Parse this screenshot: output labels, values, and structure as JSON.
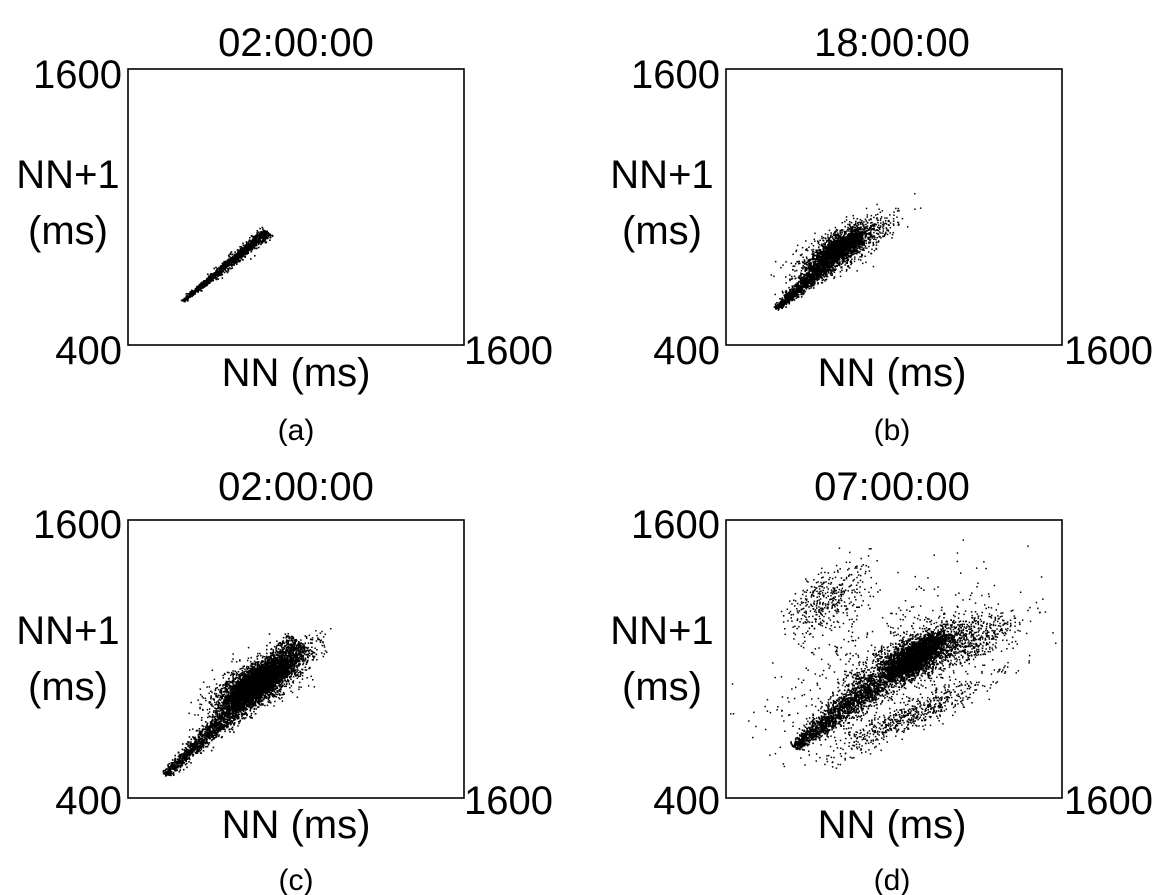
{
  "chart_data": [
    {
      "panel": "(a)",
      "type": "scatter",
      "title": "02:00:00",
      "xlabel": "NN (ms)",
      "ylabel_lines": [
        "NN+1",
        "(ms)"
      ],
      "y_tick_max": "1600",
      "origin_label": "400",
      "x_tick_max": "1600",
      "xlim": [
        400,
        1600
      ],
      "ylim": [
        400,
        1600
      ],
      "point_color": "#000000",
      "clusters": [
        {
          "shape": "line",
          "from": [
            592,
            592
          ],
          "to": [
            896,
            896
          ],
          "width_ms": 10,
          "count": 1400,
          "core_count": 0
        }
      ]
    },
    {
      "panel": "(b)",
      "type": "scatter",
      "title": "18:00:00",
      "xlabel": "NN (ms)",
      "ylabel_lines": [
        "NN+1",
        "(ms)"
      ],
      "y_tick_max": "1600",
      "origin_label": "400",
      "x_tick_max": "1600",
      "xlim": [
        400,
        1600
      ],
      "ylim": [
        400,
        1600
      ],
      "point_color": "#000000",
      "clusters": [
        {
          "shape": "line",
          "from": [
            576,
            560
          ],
          "to": [
            760,
            760
          ],
          "width_ms": 16,
          "count": 1000,
          "core_count": 0
        },
        {
          "shape": "blob",
          "center": [
            800,
            820
          ],
          "spread": [
            75,
            70
          ],
          "count": 1300,
          "core_count": 600
        },
        {
          "shape": "blob",
          "center": [
            880,
            870
          ],
          "spread": [
            65,
            55
          ],
          "count": 250,
          "core_count": 0
        }
      ]
    },
    {
      "panel": "(c)",
      "type": "scatter",
      "title": "02:00:00",
      "xlabel": "NN (ms)",
      "ylabel_lines": [
        "NN+1",
        "(ms)"
      ],
      "y_tick_max": "1600",
      "origin_label": "400",
      "x_tick_max": "1600",
      "xlim": [
        400,
        1600
      ],
      "ylim": [
        400,
        1600
      ],
      "point_color": "#000000",
      "clusters": [
        {
          "shape": "line",
          "from": [
            530,
            500
          ],
          "to": [
            1020,
            1070
          ],
          "width_ms": 28,
          "count": 2600,
          "core_count": 0
        },
        {
          "shape": "blob",
          "center": [
            860,
            900
          ],
          "spread": [
            75,
            75
          ],
          "count": 2800,
          "core_count": 1400
        },
        {
          "shape": "blob",
          "center": [
            1040,
            1070
          ],
          "spread": [
            40,
            30
          ],
          "count": 40,
          "core_count": 0
        }
      ]
    },
    {
      "panel": "(d)",
      "type": "scatter",
      "title": "07:00:00",
      "xlabel": "NN (ms)",
      "ylabel_lines": [
        "NN+1",
        "(ms)"
      ],
      "y_tick_max": "1600",
      "origin_label": "400",
      "x_tick_max": "1600",
      "xlim": [
        400,
        1600
      ],
      "ylim": [
        400,
        1600
      ],
      "point_color": "#000000",
      "clusters": [
        {
          "shape": "line",
          "from": [
            640,
            620
          ],
          "to": [
            940,
            900
          ],
          "width_ms": 30,
          "count": 1500,
          "core_count": 0
        },
        {
          "shape": "blob",
          "center": [
            1070,
            1010
          ],
          "spread": [
            95,
            85
          ],
          "count": 2000,
          "core_count": 1100
        },
        {
          "shape": "blob",
          "center": [
            1280,
            1080
          ],
          "spread": [
            90,
            80
          ],
          "count": 450,
          "core_count": 0
        },
        {
          "shape": "blob",
          "center": [
            760,
            1260
          ],
          "spread": [
            75,
            110
          ],
          "count": 420,
          "core_count": 0
        },
        {
          "shape": "blob",
          "center": [
            1060,
            760
          ],
          "spread": [
            150,
            55
          ],
          "count": 650,
          "core_count": 0
        },
        {
          "shape": "blob",
          "center": [
            940,
            1000
          ],
          "spread": [
            230,
            230
          ],
          "count": 420,
          "core_count": 0
        }
      ]
    }
  ]
}
